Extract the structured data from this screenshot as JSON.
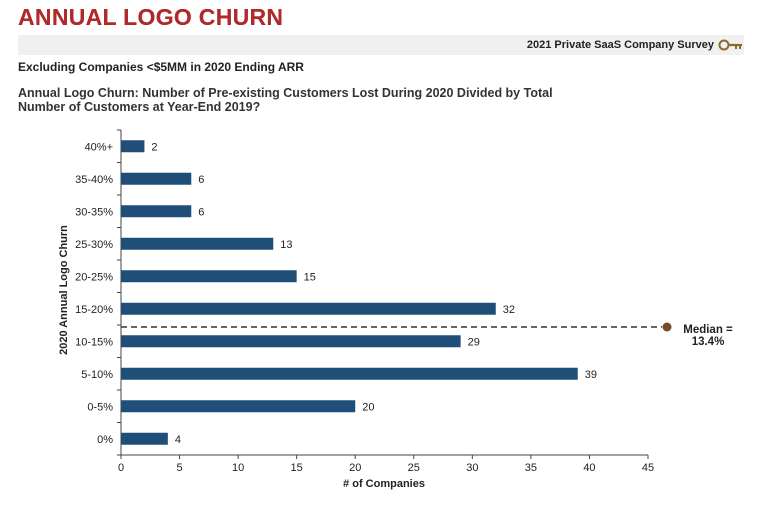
{
  "page": {
    "title": "ANNUAL LOGO CHURN",
    "survey": "2021 Private SaaS Company Survey",
    "subtitle": "Excluding Companies <$5MM in 2020 Ending ARR",
    "question": "Annual Logo Churn: Number of Pre-existing Customers Lost During 2020 Divided by Total Number of Customers at Year-End 2019?",
    "icons": [
      "key-icon"
    ]
  },
  "chart_data": {
    "type": "bar",
    "orientation": "horizontal",
    "ylabel": "2020 Annual Logo Churn",
    "xlabel": "# of Companies",
    "categories": [
      "40%+",
      "35-40%",
      "30-35%",
      "25-30%",
      "20-25%",
      "15-20%",
      "10-15%",
      "5-10%",
      "0-5%",
      "0%"
    ],
    "values": [
      2,
      6,
      6,
      13,
      15,
      32,
      29,
      39,
      20,
      4
    ],
    "xlim": [
      0,
      45
    ],
    "xticks": [
      0,
      5,
      10,
      15,
      20,
      25,
      30,
      35,
      40,
      45
    ],
    "grid": false,
    "bar_color": "#1f4e79",
    "median": {
      "label_line1": "Median =",
      "label_line2": "13.4%",
      "category_position": "10-15%",
      "marker_color": "#7a4a25"
    }
  }
}
